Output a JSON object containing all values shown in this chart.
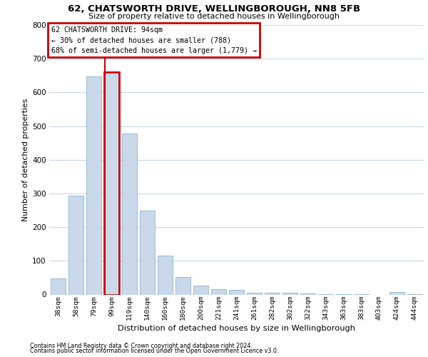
{
  "title1": "62, CHATSWORTH DRIVE, WELLINGBOROUGH, NN8 5FB",
  "title2": "Size of property relative to detached houses in Wellingborough",
  "xlabel": "Distribution of detached houses by size in Wellingborough",
  "ylabel": "Number of detached properties",
  "footnote1": "Contains HM Land Registry data © Crown copyright and database right 2024.",
  "footnote2": "Contains public sector information licensed under the Open Government Licence v3.0.",
  "annotation_title": "62 CHATSWORTH DRIVE: 94sqm",
  "annotation_line2": "← 30% of detached houses are smaller (788)",
  "annotation_line3": "68% of semi-detached houses are larger (1,779) →",
  "bar_color": "#c9d9ea",
  "bar_edge_color": "#8ab2cc",
  "highlight_color": "#cc0000",
  "background_color": "#ffffff",
  "grid_color": "#c8d8e8",
  "categories": [
    "38sqm",
    "58sqm",
    "79sqm",
    "99sqm",
    "119sqm",
    "140sqm",
    "160sqm",
    "180sqm",
    "200sqm",
    "221sqm",
    "241sqm",
    "261sqm",
    "282sqm",
    "302sqm",
    "322sqm",
    "343sqm",
    "363sqm",
    "383sqm",
    "403sqm",
    "424sqm",
    "444sqm"
  ],
  "values": [
    48,
    293,
    648,
    660,
    478,
    248,
    115,
    52,
    27,
    15,
    14,
    6,
    5,
    5,
    4,
    2,
    2,
    1,
    0,
    7,
    1
  ],
  "highlight_bin_index": 3,
  "redline_x": 2.6,
  "ylim_max": 800,
  "yticks": [
    0,
    100,
    200,
    300,
    400,
    500,
    600,
    700,
    800
  ]
}
